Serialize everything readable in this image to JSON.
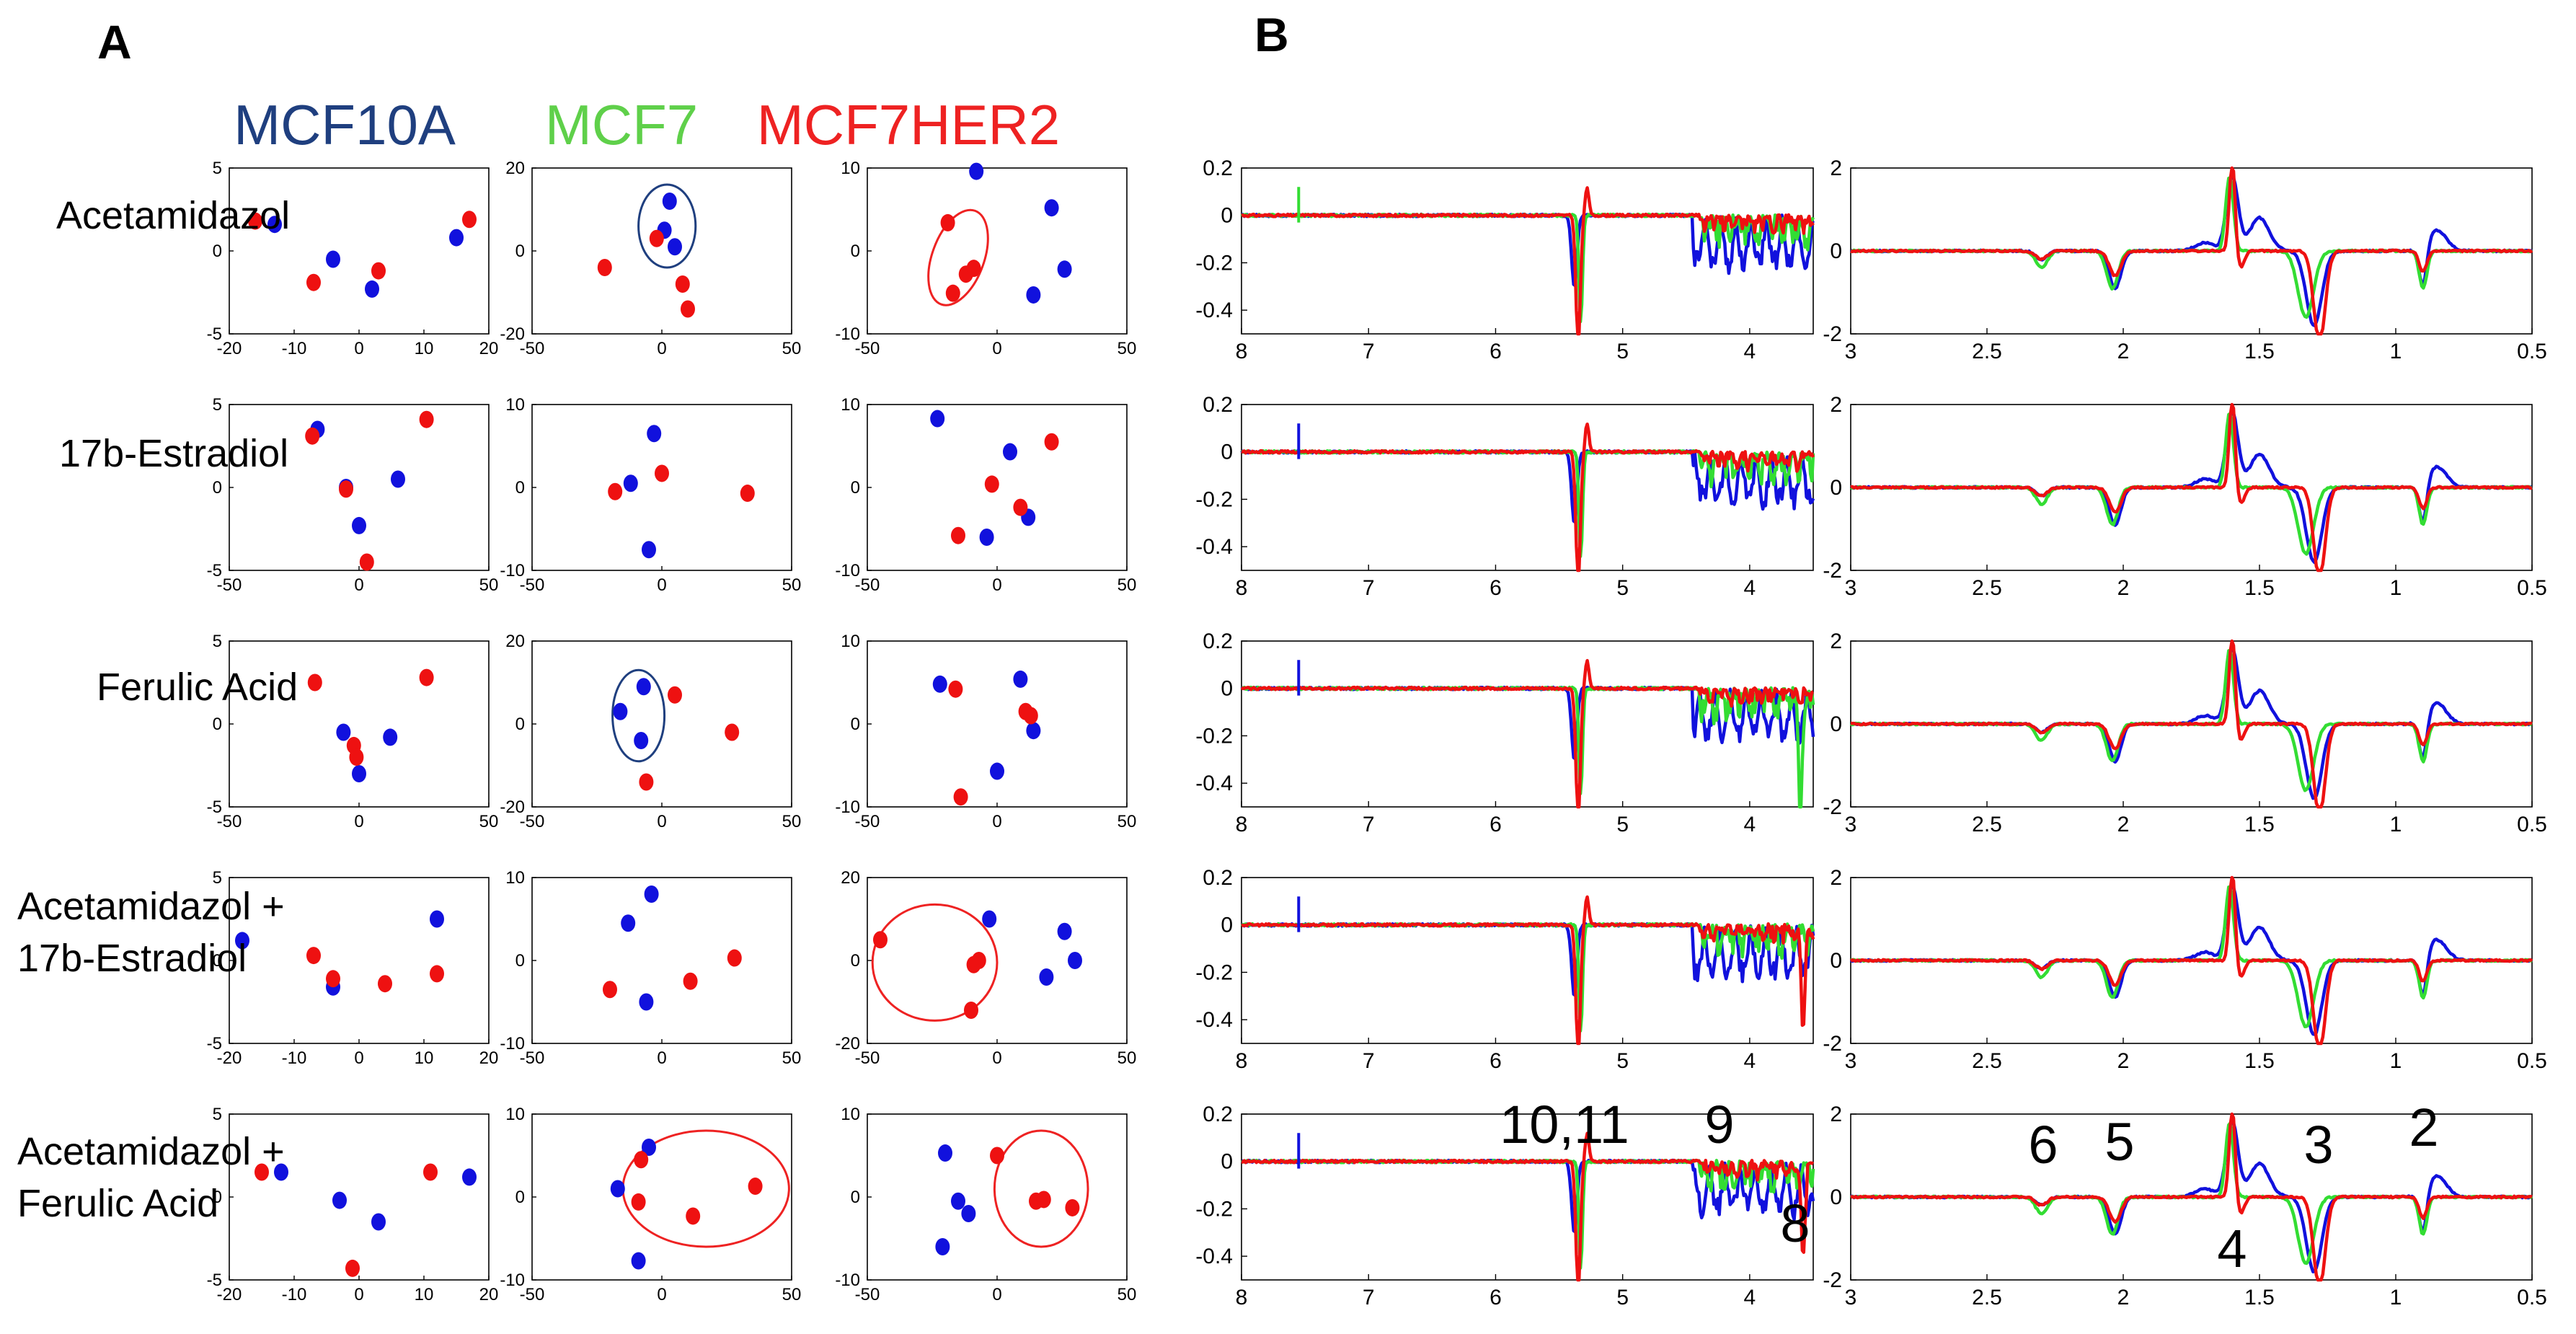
{
  "figure": {
    "panel_a_label": "A",
    "panel_b_label": "B",
    "columns": [
      {
        "label": "MCF10A",
        "color": "#1f3f7f"
      },
      {
        "label": "MCF7",
        "color": "#5fd04a"
      },
      {
        "label": "MCF7HER2",
        "color": "#ee2222"
      }
    ],
    "rows": [
      {
        "label_lines": [
          "Acetamidazol"
        ]
      },
      {
        "label_lines": [
          "17b-Estradiol"
        ]
      },
      {
        "label_lines": [
          "Ferulic Acid"
        ]
      },
      {
        "label_lines": [
          "Acetamidazol +",
          "17b-Estradiol"
        ]
      },
      {
        "label_lines": [
          "Acetamidazol +",
          "Ferulic Acid"
        ]
      }
    ],
    "colors": {
      "blue": "#1111dd",
      "red": "#ee1111",
      "green": "#33dd33",
      "ring_blue": "#1f3f7f",
      "ring_red": "#ee2222"
    }
  },
  "chart_data": {
    "scatter_panels": [
      {
        "row": 0,
        "col": "MCF10A",
        "type": "scatter",
        "xlim": [
          -20,
          20
        ],
        "ylim": [
          -5,
          5
        ],
        "xticks": [
          "-20",
          "-10",
          "0",
          "10",
          "20"
        ],
        "yticks": [
          "5",
          "0",
          "-5"
        ],
        "blue": [
          [
            -13,
            1.6
          ],
          [
            -4,
            -0.5
          ],
          [
            2,
            -2.3
          ],
          [
            15,
            0.8
          ]
        ],
        "red": [
          [
            -16,
            1.8
          ],
          [
            -7,
            -1.9
          ],
          [
            3,
            -1.2
          ],
          [
            17,
            1.9
          ]
        ],
        "rings": []
      },
      {
        "row": 0,
        "col": "MCF7",
        "type": "scatter",
        "xlim": [
          -50,
          50
        ],
        "ylim": [
          -20,
          20
        ],
        "xticks": [
          "-50",
          "0",
          "50"
        ],
        "yticks": [
          "20",
          "0",
          "-20"
        ],
        "blue": [
          [
            3,
            12
          ],
          [
            5,
            1
          ],
          [
            1,
            5
          ]
        ],
        "red": [
          [
            -22,
            -4
          ],
          [
            -2,
            3
          ],
          [
            10,
            -14
          ],
          [
            8,
            -8
          ]
        ],
        "rings": [
          {
            "cx": 2,
            "cy": 6,
            "rx": 11,
            "ry": 10,
            "color": "blue"
          }
        ]
      },
      {
        "row": 0,
        "col": "MCF7HER2",
        "type": "scatter",
        "xlim": [
          -50,
          50
        ],
        "ylim": [
          -10,
          10
        ],
        "xticks": [
          "-50",
          "0",
          "50"
        ],
        "yticks": [
          "10",
          "0",
          "-10"
        ],
        "blue": [
          [
            -8,
            9.6
          ],
          [
            21,
            5.2
          ],
          [
            26,
            -2.2
          ],
          [
            14,
            -5.3
          ]
        ],
        "red": [
          [
            -19,
            3.4
          ],
          [
            -12,
            -2.8
          ],
          [
            -17,
            -5.1
          ],
          [
            -9,
            -2.1
          ]
        ],
        "rings": [
          {
            "cx": -15,
            "cy": -0.8,
            "rx": 10,
            "ry": 6,
            "color": "red"
          }
        ]
      },
      {
        "row": 1,
        "col": "MCF10A",
        "type": "scatter",
        "xlim": [
          -50,
          50
        ],
        "ylim": [
          -5,
          5
        ],
        "xticks": [
          "-50",
          "0",
          "50"
        ],
        "yticks": [
          "5",
          "0",
          "-5"
        ],
        "blue": [
          [
            -16,
            3.5
          ],
          [
            -5,
            0
          ],
          [
            0,
            -2.3
          ],
          [
            15,
            0.5
          ]
        ],
        "red": [
          [
            -18,
            3.1
          ],
          [
            -5,
            -0.1
          ],
          [
            3,
            -4.5
          ],
          [
            26,
            4.1
          ]
        ],
        "rings": []
      },
      {
        "row": 1,
        "col": "MCF7",
        "type": "scatter",
        "xlim": [
          -50,
          50
        ],
        "ylim": [
          -10,
          10
        ],
        "xticks": [
          "-50",
          "0",
          "50"
        ],
        "yticks": [
          "10",
          "0",
          "-10"
        ],
        "blue": [
          [
            -3,
            6.5
          ],
          [
            -12,
            0.5
          ],
          [
            -5,
            -7.5
          ]
        ],
        "red": [
          [
            -18,
            -0.5
          ],
          [
            0,
            1.7
          ],
          [
            33,
            -0.7
          ]
        ],
        "rings": []
      },
      {
        "row": 1,
        "col": "MCF7HER2",
        "type": "scatter",
        "xlim": [
          -50,
          50
        ],
        "ylim": [
          -10,
          10
        ],
        "xticks": [
          "-50",
          "0",
          "50"
        ],
        "yticks": [
          "10",
          "0",
          "-10"
        ],
        "blue": [
          [
            -23,
            8.3
          ],
          [
            5,
            4.3
          ],
          [
            12,
            -3.6
          ],
          [
            -4,
            -6
          ]
        ],
        "red": [
          [
            -15,
            -5.8
          ],
          [
            -2,
            0.4
          ],
          [
            9,
            -2.4
          ],
          [
            21,
            5.5
          ]
        ],
        "rings": []
      },
      {
        "row": 2,
        "col": "MCF10A",
        "type": "scatter",
        "xlim": [
          -50,
          50
        ],
        "ylim": [
          -5,
          5
        ],
        "xticks": [
          "-50",
          "0",
          "50"
        ],
        "yticks": [
          "5",
          "0",
          "-5"
        ],
        "blue": [
          [
            -6,
            -0.5
          ],
          [
            12,
            -0.8
          ],
          [
            0,
            -3
          ]
        ],
        "red": [
          [
            -17,
            2.5
          ],
          [
            26,
            2.8
          ],
          [
            -2,
            -1.3
          ],
          [
            -1,
            -2
          ]
        ],
        "rings": []
      },
      {
        "row": 2,
        "col": "MCF7",
        "type": "scatter",
        "xlim": [
          -50,
          50
        ],
        "ylim": [
          -20,
          20
        ],
        "xticks": [
          "-50",
          "0",
          "50"
        ],
        "yticks": [
          "20",
          "0",
          "-20"
        ],
        "blue": [
          [
            -16,
            3
          ],
          [
            -7,
            9
          ],
          [
            -8,
            -4
          ]
        ],
        "red": [
          [
            5,
            7
          ],
          [
            27,
            -2
          ],
          [
            -6,
            -14
          ]
        ],
        "rings": [
          {
            "cx": -9,
            "cy": 2,
            "rx": 10,
            "ry": 11,
            "color": "blue"
          }
        ]
      },
      {
        "row": 2,
        "col": "MCF7HER2",
        "type": "scatter",
        "xlim": [
          -50,
          50
        ],
        "ylim": [
          -10,
          10
        ],
        "xticks": [
          "-50",
          "0",
          "50"
        ],
        "yticks": [
          "10",
          "0",
          "-10"
        ],
        "blue": [
          [
            -22,
            4.8
          ],
          [
            9,
            5.4
          ],
          [
            14,
            -0.8
          ],
          [
            0,
            -5.7
          ]
        ],
        "red": [
          [
            -16,
            4.2
          ],
          [
            11,
            1.5
          ],
          [
            13,
            1
          ],
          [
            -14,
            -8.8
          ]
        ],
        "rings": []
      },
      {
        "row": 3,
        "col": "MCF10A",
        "type": "scatter",
        "xlim": [
          -20,
          20
        ],
        "ylim": [
          -5,
          5
        ],
        "xticks": [
          "-20",
          "-10",
          "0",
          "10",
          "20"
        ],
        "yticks": [
          "5",
          "0",
          "-5"
        ],
        "blue": [
          [
            -18,
            1.2
          ],
          [
            -4,
            -1.6
          ],
          [
            12,
            2.5
          ]
        ],
        "red": [
          [
            -7,
            0.3
          ],
          [
            -4,
            -1.1
          ],
          [
            4,
            -1.4
          ],
          [
            12,
            -0.8
          ]
        ],
        "rings": []
      },
      {
        "row": 3,
        "col": "MCF7",
        "type": "scatter",
        "xlim": [
          -50,
          50
        ],
        "ylim": [
          -10,
          10
        ],
        "xticks": [
          "-50",
          "0",
          "50"
        ],
        "yticks": [
          "10",
          "0",
          "-10"
        ],
        "blue": [
          [
            -4,
            8
          ],
          [
            -13,
            4.5
          ],
          [
            -6,
            -5
          ]
        ],
        "red": [
          [
            -20,
            -3.5
          ],
          [
            11,
            -2.5
          ],
          [
            28,
            0.3
          ]
        ],
        "rings": []
      },
      {
        "row": 3,
        "col": "MCF7HER2",
        "type": "scatter",
        "xlim": [
          -50,
          50
        ],
        "ylim": [
          -20,
          20
        ],
        "xticks": [
          "-50",
          "0",
          "50"
        ],
        "yticks": [
          "20",
          "0",
          "-20"
        ],
        "blue": [
          [
            -3,
            10
          ],
          [
            26,
            7
          ],
          [
            30,
            0
          ],
          [
            19,
            -4
          ]
        ],
        "red": [
          [
            -45,
            5
          ],
          [
            -7,
            0
          ],
          [
            -9,
            -1
          ],
          [
            -10,
            -12
          ]
        ],
        "rings": [
          {
            "cx": -24,
            "cy": -0.5,
            "rx": 24,
            "ry": 14,
            "color": "red"
          }
        ]
      },
      {
        "row": 4,
        "col": "MCF10A",
        "type": "scatter",
        "xlim": [
          -20,
          20
        ],
        "ylim": [
          -5,
          5
        ],
        "xticks": [
          "-20",
          "-10",
          "0",
          "10",
          "20"
        ],
        "yticks": [
          "5",
          "0",
          "-5"
        ],
        "blue": [
          [
            -12,
            1.5
          ],
          [
            -3,
            -0.2
          ],
          [
            3,
            -1.5
          ],
          [
            17,
            1.2
          ]
        ],
        "red": [
          [
            -15,
            1.5
          ],
          [
            -1,
            -4.3
          ],
          [
            11,
            1.5
          ]
        ],
        "rings": []
      },
      {
        "row": 4,
        "col": "MCF7",
        "type": "scatter",
        "xlim": [
          -50,
          50
        ],
        "ylim": [
          -10,
          10
        ],
        "xticks": [
          "-50",
          "0",
          "50"
        ],
        "yticks": [
          "10",
          "0",
          "-10"
        ],
        "blue": [
          [
            -17,
            1
          ],
          [
            -5,
            6
          ],
          [
            -9,
            -7.7
          ]
        ],
        "red": [
          [
            -8,
            4.5
          ],
          [
            -9,
            -0.6
          ],
          [
            12,
            -2.3
          ],
          [
            36,
            1.3
          ]
        ],
        "rings": [
          {
            "cx": 17,
            "cy": 1,
            "rx": 32,
            "ry": 7,
            "color": "red"
          }
        ]
      },
      {
        "row": 4,
        "col": "MCF7HER2",
        "type": "scatter",
        "xlim": [
          -50,
          50
        ],
        "ylim": [
          -10,
          10
        ],
        "xticks": [
          "-50",
          "0",
          "50"
        ],
        "yticks": [
          "10",
          "0",
          "-10"
        ],
        "blue": [
          [
            -20,
            5.3
          ],
          [
            -15,
            -0.5
          ],
          [
            -11,
            -2
          ],
          [
            -21,
            -6
          ]
        ],
        "red": [
          [
            0,
            5
          ],
          [
            15,
            -0.5
          ],
          [
            18,
            -0.3
          ],
          [
            29,
            -1.3
          ]
        ],
        "rings": [
          {
            "cx": 17,
            "cy": 1,
            "rx": 18,
            "ry": 7,
            "color": "red"
          }
        ]
      }
    ],
    "spectra_panels": {
      "type": "line",
      "series_names": [
        "MCF10A (blue)",
        "MCF7 (green)",
        "MCF7HER2 (red)"
      ],
      "left": {
        "xlim": [
          8,
          3.5
        ],
        "ylim": [
          -0.5,
          0.2
        ],
        "xticks": [
          "8",
          "7",
          "6",
          "5",
          "4"
        ],
        "yticks": [
          "0.2",
          "0",
          "-0.2",
          "-0.4"
        ]
      },
      "right": {
        "xlim": [
          3,
          0.5
        ],
        "ylim": [
          -2,
          2
        ],
        "xticks": [
          "3",
          "2.5",
          "2",
          "1.5",
          "1",
          "0.5"
        ],
        "yticks": [
          "2",
          "0",
          "-2"
        ]
      }
    },
    "peak_annotations_left": [
      "10,11",
      "9",
      "8"
    ],
    "peak_annotations_right": [
      "6",
      "5",
      "4",
      "3",
      "2"
    ]
  }
}
